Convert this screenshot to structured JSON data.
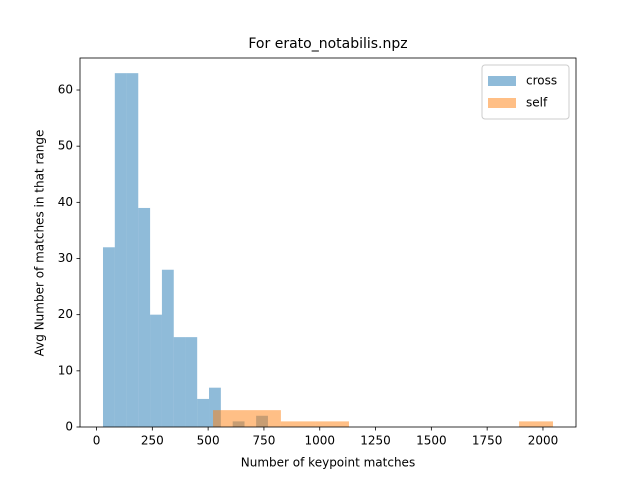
{
  "chart_data": {
    "type": "histogram",
    "title": "For erato_notabilis.npz",
    "xlabel": "Number of keypoint matches",
    "ylabel": "Avg Number of matches in that range",
    "series": [
      {
        "name": "cross",
        "color": "#1f77b4",
        "bins": [
          29,
          82,
          135,
          187,
          240,
          293,
          346,
          399,
          451,
          504,
          557,
          610,
          663,
          715,
          768
        ],
        "values": [
          32,
          63,
          63,
          39,
          20,
          28,
          16,
          16,
          5,
          7,
          0,
          1,
          0,
          2
        ]
      },
      {
        "name": "self",
        "color": "#ff7f0e",
        "bins": [
          522,
          674,
          826,
          979,
          1131,
          1283,
          1436,
          1588,
          1740,
          1893,
          2045
        ],
        "values": [
          3,
          3,
          1,
          1,
          0,
          0,
          0,
          0,
          0,
          1
        ]
      }
    ],
    "opacity": 0.5,
    "xlim": [
      -74,
      2148
    ],
    "ylim": [
      0,
      65.7
    ],
    "xticks": [
      0,
      250,
      500,
      750,
      1000,
      1250,
      1500,
      1750,
      2000
    ],
    "yticks": [
      0,
      10,
      20,
      30,
      40,
      50,
      60
    ],
    "legend": "upper right"
  }
}
